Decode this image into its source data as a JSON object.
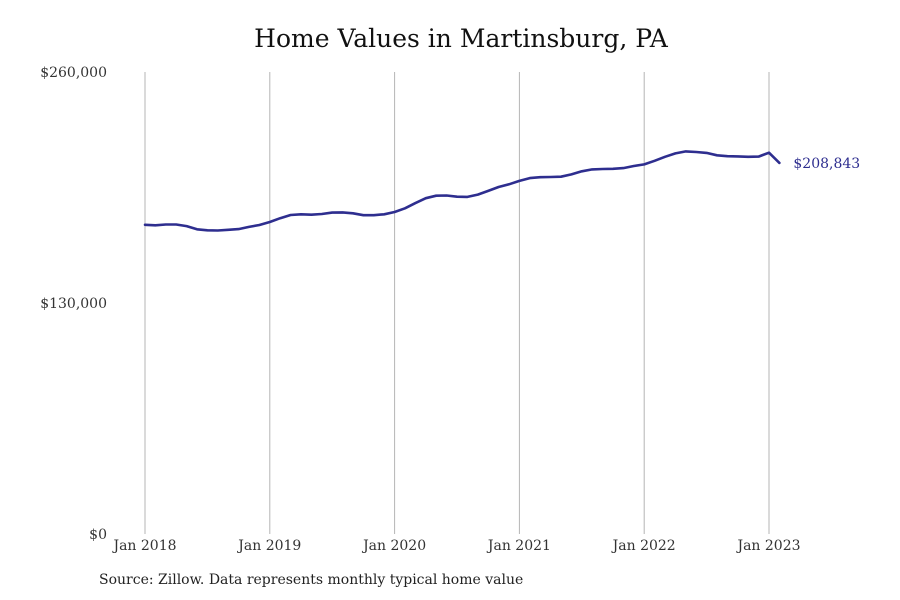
{
  "source": "Source: Zillow. Data represents monthly typical home value",
  "chart_data": {
    "type": "line",
    "title": "Home Values in Martinsburg, PA",
    "xlabel": "",
    "ylabel": "",
    "ylim": [
      0,
      260000
    ],
    "y_ticks": [
      {
        "value": 0,
        "label": "$0"
      },
      {
        "value": 130000,
        "label": "$130,000"
      },
      {
        "value": 260000,
        "label": "$260,000"
      }
    ],
    "x_ticks": [
      {
        "value": "2018-01",
        "label": "Jan 2018"
      },
      {
        "value": "2019-01",
        "label": "Jan 2019"
      },
      {
        "value": "2020-01",
        "label": "Jan 2020"
      },
      {
        "value": "2021-01",
        "label": "Jan 2021"
      },
      {
        "value": "2022-01",
        "label": "Jan 2022"
      },
      {
        "value": "2023-01",
        "label": "Jan 2023"
      }
    ],
    "grid": "vertical at year ticks",
    "line_color": "#2e2e8f",
    "end_label": "$208,843",
    "series": [
      {
        "x": [
          "2018-01",
          "2018-02",
          "2018-03",
          "2018-04",
          "2018-05",
          "2018-06",
          "2018-07",
          "2018-08",
          "2018-09",
          "2018-10",
          "2018-11",
          "2018-12",
          "2019-01",
          "2019-02",
          "2019-03",
          "2019-04",
          "2019-05",
          "2019-06",
          "2019-07",
          "2019-08",
          "2019-09",
          "2019-10",
          "2019-11",
          "2019-12",
          "2020-01",
          "2020-02",
          "2020-03",
          "2020-04",
          "2020-05",
          "2020-06",
          "2020-07",
          "2020-08",
          "2020-09",
          "2020-10",
          "2020-11",
          "2020-12",
          "2021-01",
          "2021-02",
          "2021-03",
          "2021-04",
          "2021-05",
          "2021-06",
          "2021-07",
          "2021-08",
          "2021-09",
          "2021-10",
          "2021-11",
          "2021-12",
          "2022-01",
          "2022-02",
          "2022-03",
          "2022-04",
          "2022-05",
          "2022-06",
          "2022-07",
          "2022-08",
          "2022-09",
          "2022-10",
          "2022-11",
          "2022-12",
          "2023-01",
          "2023-02"
        ],
        "values": [
          174000,
          173700,
          174200,
          174200,
          173300,
          171500,
          170900,
          170800,
          171200,
          171600,
          172800,
          173900,
          175600,
          177700,
          179500,
          179900,
          179700,
          180100,
          180900,
          181000,
          180500,
          179400,
          179400,
          179900,
          181200,
          183300,
          186200,
          189000,
          190400,
          190500,
          189800,
          189700,
          191000,
          193100,
          195300,
          196800,
          198700,
          200300,
          200800,
          200900,
          201100,
          202400,
          204100,
          205200,
          205400,
          205500,
          205900,
          207100,
          208000,
          210000,
          212300,
          214200,
          215300,
          215000,
          214500,
          213100,
          212600,
          212500,
          212300,
          212400,
          214600,
          208843
        ]
      }
    ]
  }
}
